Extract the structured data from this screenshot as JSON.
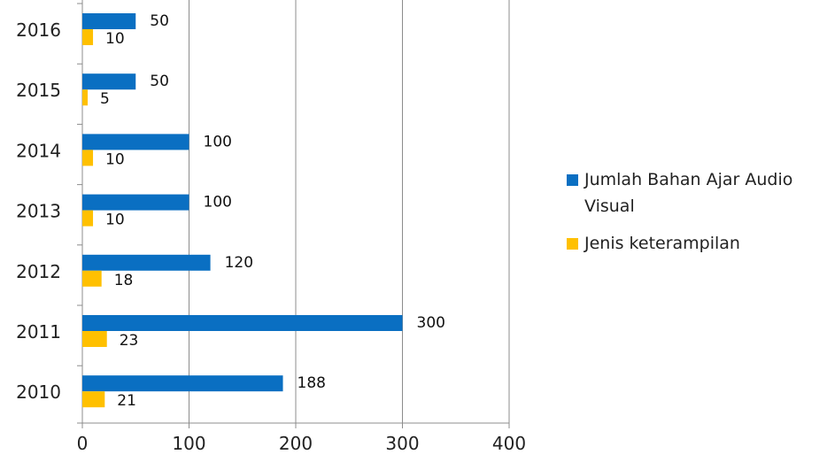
{
  "chart_data": {
    "type": "bar",
    "orientation": "horizontal",
    "categories": [
      "2016",
      "2015",
      "2014",
      "2013",
      "2012",
      "2011",
      "2010"
    ],
    "series": [
      {
        "name": "Jumlah Bahan Ajar Audio Visual",
        "color": "#0a6fc2",
        "values": [
          50,
          50,
          100,
          100,
          120,
          300,
          188
        ]
      },
      {
        "name": "Jenis keterampilan",
        "color": "#ffc000",
        "values": [
          10,
          5,
          10,
          10,
          18,
          23,
          21
        ]
      }
    ],
    "xlim": [
      0,
      400
    ],
    "xticks": [
      "0",
      "100",
      "200",
      "300",
      "400"
    ],
    "grid": true,
    "legend": "right",
    "data_labels": true
  }
}
